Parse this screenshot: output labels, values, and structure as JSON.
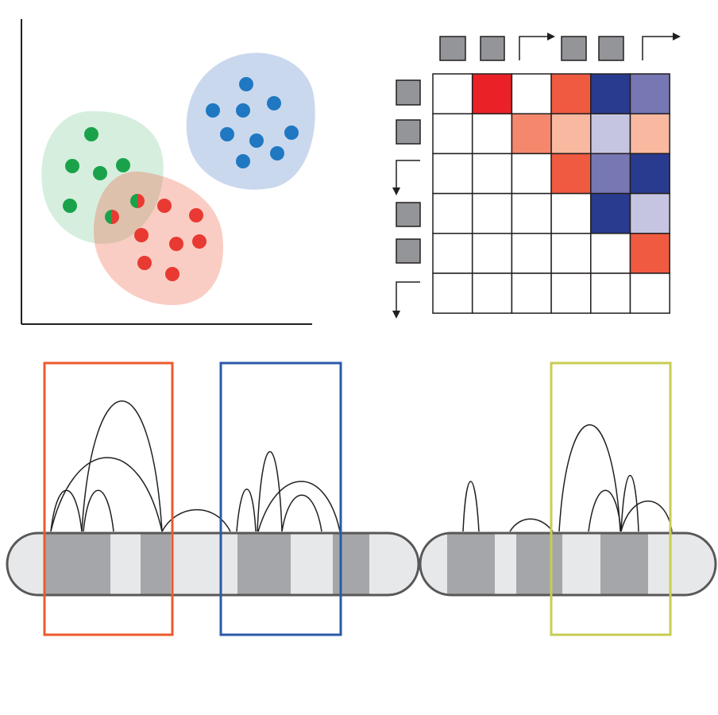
{
  "colors": {
    "green": "#1aa24a",
    "blue": "#1f78c1",
    "red": "#e83a32",
    "green_region": "#d3e7d0",
    "blue_region": "#cad8ee",
    "red_region": "#f9cdbf",
    "box_orange": "#ec5a2c",
    "box_blue": "#2a5aa8",
    "box_yellow": "#c7cd52",
    "chrom_light": "#e7e8ea",
    "chrom_dark": "#a5a6a9",
    "chrom_outline": "#585858",
    "node_gray": "#939598",
    "axis": "#231f20"
  },
  "scatter": {
    "clusters": [
      {
        "name": "green",
        "points": 6,
        "shared_points": 2
      },
      {
        "name": "blue",
        "points": 10
      },
      {
        "name": "red",
        "points": 8,
        "shared_points": 2
      }
    ]
  },
  "matrix": {
    "rows": 6,
    "cols": 6,
    "cells": [
      {
        "r": 0,
        "c": 1,
        "color": "#ea2227"
      },
      {
        "r": 0,
        "c": 3,
        "color": "#f05a41"
      },
      {
        "r": 0,
        "c": 4,
        "color": "#293b8f"
      },
      {
        "r": 0,
        "c": 5,
        "color": "#7677b3"
      },
      {
        "r": 1,
        "c": 2,
        "color": "#f4876c"
      },
      {
        "r": 1,
        "c": 3,
        "color": "#f9b8a0"
      },
      {
        "r": 1,
        "c": 4,
        "color": "#c6c5e1"
      },
      {
        "r": 1,
        "c": 5,
        "color": "#f9b8a0"
      },
      {
        "r": 2,
        "c": 3,
        "color": "#f05a41"
      },
      {
        "r": 2,
        "c": 4,
        "color": "#7677b3"
      },
      {
        "r": 2,
        "c": 5,
        "color": "#293b8f"
      },
      {
        "r": 3,
        "c": 4,
        "color": "#293b8f"
      },
      {
        "r": 3,
        "c": 5,
        "color": "#c6c5e1"
      },
      {
        "r": 4,
        "c": 5,
        "color": "#f05a41"
      }
    ]
  },
  "chromosomes": {
    "count": 2,
    "highlight_boxes": [
      "orange",
      "blue",
      "yellow"
    ]
  }
}
